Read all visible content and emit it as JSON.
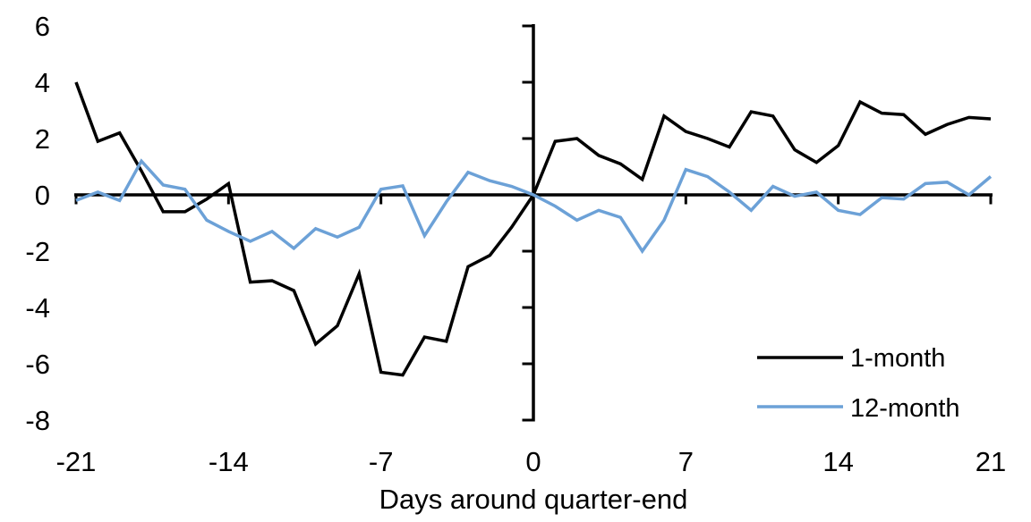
{
  "figure": {
    "background": "#ffffff",
    "axis_color": "#000000"
  },
  "chart_data": {
    "type": "line",
    "title": "",
    "xlabel": "Days around quarter-end",
    "ylabel": "",
    "xlim": [
      -21,
      21
    ],
    "ylim": [
      -8,
      6
    ],
    "grid": false,
    "axes_cross_at": [
      0,
      0
    ],
    "legend_position": "inside-lower-right",
    "x_ticks": [
      -21,
      -14,
      -7,
      0,
      7,
      14,
      21
    ],
    "x_tick_labels": [
      "-21",
      "-14",
      "-7",
      "0",
      "7",
      "14",
      "21"
    ],
    "y_ticks": [
      6,
      4,
      2,
      0,
      -2,
      -4,
      -6,
      -8
    ],
    "y_tick_labels": [
      "6",
      "4",
      "2",
      "0",
      "-2",
      "-4",
      "-6",
      "-8"
    ],
    "x": [
      -21,
      -20,
      -19,
      -18,
      -17,
      -16,
      -15,
      -14,
      -13,
      -12,
      -11,
      -10,
      -9,
      -8,
      -7,
      -6,
      -5,
      -4,
      -3,
      -2,
      -1,
      0,
      1,
      2,
      3,
      4,
      5,
      6,
      7,
      8,
      9,
      10,
      11,
      12,
      13,
      14,
      15,
      16,
      17,
      18,
      19,
      20,
      21
    ],
    "series": [
      {
        "name": "1-month",
        "color": "#000000",
        "values": [
          4.0,
          1.9,
          2.2,
          0.85,
          -0.6,
          -0.6,
          -0.15,
          0.4,
          -3.1,
          -3.05,
          -3.4,
          -5.3,
          -4.65,
          -2.8,
          -6.3,
          -6.4,
          -5.05,
          -5.2,
          -2.55,
          -2.15,
          -1.15,
          0.0,
          1.9,
          2.0,
          1.4,
          1.1,
          0.55,
          2.8,
          2.25,
          2.0,
          1.7,
          2.95,
          2.8,
          1.6,
          1.15,
          1.75,
          3.3,
          2.9,
          2.85,
          2.15,
          2.5,
          2.75,
          2.7
        ]
      },
      {
        "name": "12-month",
        "color": "#6CA1D7",
        "values": [
          -0.2,
          0.1,
          -0.2,
          1.2,
          0.35,
          0.2,
          -0.9,
          -1.3,
          -1.65,
          -1.3,
          -1.9,
          -1.2,
          -1.5,
          -1.15,
          0.2,
          0.32,
          -1.45,
          -0.25,
          0.8,
          0.5,
          0.3,
          0.0,
          -0.4,
          -0.9,
          -0.55,
          -0.8,
          -2.0,
          -0.9,
          0.9,
          0.65,
          0.1,
          -0.55,
          0.3,
          -0.05,
          0.1,
          -0.55,
          -0.7,
          -0.1,
          -0.15,
          0.4,
          0.45,
          0.0,
          0.65
        ]
      }
    ]
  }
}
